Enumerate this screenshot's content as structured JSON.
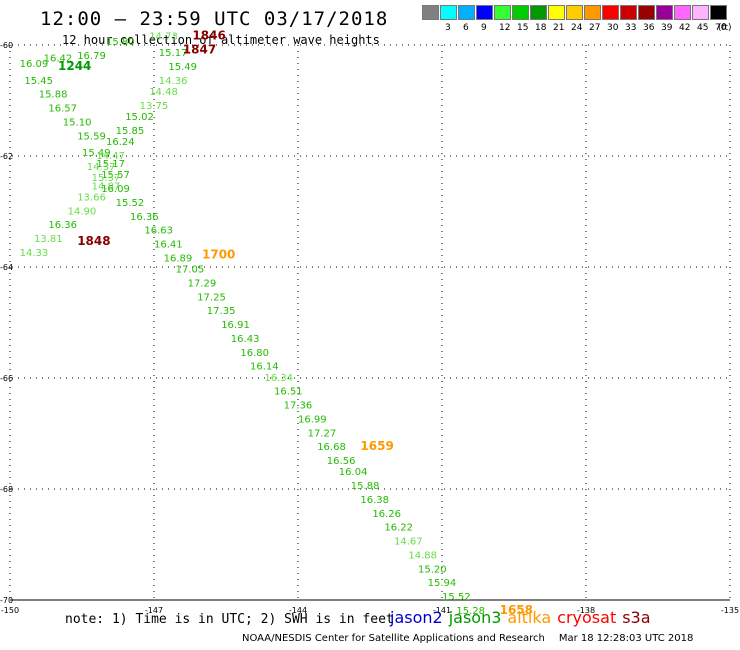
{
  "title": "12:00 – 23:59 UTC 03/17/2018",
  "subtitle": "12 hour collection of altimeter wave heights",
  "scale": {
    "unit": "(ft)",
    "colors": [
      "#808080",
      "#00ffff",
      "#00b0ff",
      "#0000ff",
      "#33ff33",
      "#00cc00",
      "#009900",
      "#ffff00",
      "#ffcc00",
      "#ff9900",
      "#ff0000",
      "#cc0000",
      "#990000",
      "#990099",
      "#ff66ff",
      "#ffb3ff",
      "#000000"
    ],
    "labels": [
      "3",
      "6",
      "9",
      "12",
      "15",
      "18",
      "21",
      "24",
      "27",
      "30",
      "33",
      "36",
      "39",
      "42",
      "45",
      "70"
    ]
  },
  "map": {
    "lon_range": [
      -150,
      -135
    ],
    "lat_range": [
      -70,
      -60
    ],
    "lat_ticks": [
      "-60",
      "-62",
      "-64",
      "-66",
      "-68",
      "-70"
    ],
    "lon_ticks": [
      "-150",
      "-147",
      "-144",
      "-141",
      "-138",
      "-135"
    ],
    "grid": "dotted"
  },
  "colors": {
    "light": "#66dd44",
    "mid": "#22bb00",
    "dark": "#009900",
    "orange": "#ff9900",
    "darkred": "#880000"
  },
  "points": [
    {
      "lon": -149.8,
      "lat": -60.4,
      "v": "16.09",
      "c": "mid"
    },
    {
      "lon": -149.3,
      "lat": -60.3,
      "v": "16.42",
      "c": "mid"
    },
    {
      "lon": -148.6,
      "lat": -60.25,
      "v": "16.79",
      "c": "mid"
    },
    {
      "lon": -148.0,
      "lat": -60.0,
      "v": "15.80",
      "c": "mid"
    },
    {
      "lon": -149.7,
      "lat": -60.7,
      "v": "15.45",
      "c": "mid"
    },
    {
      "lon": -149.4,
      "lat": -60.95,
      "v": "15.88",
      "c": "mid"
    },
    {
      "lon": -149.2,
      "lat": -61.2,
      "v": "16.57",
      "c": "mid"
    },
    {
      "lon": -148.9,
      "lat": -61.45,
      "v": "15.10",
      "c": "mid"
    },
    {
      "lon": -148.6,
      "lat": -61.7,
      "v": "15.59",
      "c": "mid"
    },
    {
      "lon": -148.5,
      "lat": -62.0,
      "v": "15.49",
      "c": "mid"
    },
    {
      "lon": -148.2,
      "lat": -62.2,
      "v": "15.17",
      "c": "mid"
    },
    {
      "lon": -148.1,
      "lat": -62.4,
      "v": "15.57",
      "c": "mid"
    },
    {
      "lon": -148.3,
      "lat": -62.6,
      "v": "14.87",
      "c": "light"
    },
    {
      "lon": -148.6,
      "lat": -62.8,
      "v": "13.66",
      "c": "light"
    },
    {
      "lon": -148.8,
      "lat": -63.05,
      "v": "14.90",
      "c": "light"
    },
    {
      "lon": -149.2,
      "lat": -63.3,
      "v": "16.36",
      "c": "mid"
    },
    {
      "lon": -149.5,
      "lat": -63.55,
      "v": "13.81",
      "c": "light"
    },
    {
      "lon": -149.8,
      "lat": -63.8,
      "v": "14.33",
      "c": "light"
    },
    {
      "lon": -147.1,
      "lat": -59.9,
      "v": "14.73",
      "c": "light"
    },
    {
      "lon": -146.9,
      "lat": -60.2,
      "v": "15.17",
      "c": "mid"
    },
    {
      "lon": -146.7,
      "lat": -60.45,
      "v": "15.49",
      "c": "mid"
    },
    {
      "lon": -146.9,
      "lat": -60.7,
      "v": "14.36",
      "c": "light"
    },
    {
      "lon": -147.1,
      "lat": -60.9,
      "v": "14.48",
      "c": "light"
    },
    {
      "lon": -147.3,
      "lat": -61.15,
      "v": "13.75",
      "c": "light"
    },
    {
      "lon": -147.6,
      "lat": -61.35,
      "v": "15.02",
      "c": "mid"
    },
    {
      "lon": -147.8,
      "lat": -61.6,
      "v": "15.85",
      "c": "mid"
    },
    {
      "lon": -148.0,
      "lat": -61.8,
      "v": "16.24",
      "c": "mid"
    },
    {
      "lon": -148.2,
      "lat": -62.05,
      "v": "14.47",
      "c": "light"
    },
    {
      "lon": -148.4,
      "lat": -62.25,
      "v": "14.37",
      "c": "light"
    },
    {
      "lon": -148.3,
      "lat": -62.45,
      "v": "15.37",
      "c": "light"
    },
    {
      "lon": -148.1,
      "lat": -62.65,
      "v": "16.09",
      "c": "mid"
    },
    {
      "lon": -147.8,
      "lat": -62.9,
      "v": "15.52",
      "c": "mid"
    },
    {
      "lon": -147.5,
      "lat": -63.15,
      "v": "16.36",
      "c": "mid"
    },
    {
      "lon": -147.2,
      "lat": -63.4,
      "v": "16.63",
      "c": "mid"
    },
    {
      "lon": -147.0,
      "lat": -63.65,
      "v": "16.41",
      "c": "mid"
    },
    {
      "lon": -146.8,
      "lat": -63.9,
      "v": "16.89",
      "c": "mid"
    },
    {
      "lon": -146.55,
      "lat": -64.1,
      "v": "17.05",
      "c": "mid"
    },
    {
      "lon": -146.3,
      "lat": -64.35,
      "v": "17.29",
      "c": "mid"
    },
    {
      "lon": -146.1,
      "lat": -64.6,
      "v": "17.25",
      "c": "mid"
    },
    {
      "lon": -145.9,
      "lat": -64.85,
      "v": "17.35",
      "c": "mid"
    },
    {
      "lon": -145.6,
      "lat": -65.1,
      "v": "16.91",
      "c": "mid"
    },
    {
      "lon": -145.4,
      "lat": -65.35,
      "v": "16.43",
      "c": "mid"
    },
    {
      "lon": -145.2,
      "lat": -65.6,
      "v": "16.80",
      "c": "mid"
    },
    {
      "lon": -145.0,
      "lat": -65.85,
      "v": "16.14",
      "c": "mid"
    },
    {
      "lon": -144.7,
      "lat": -66.05,
      "v": "16.34",
      "c": "light"
    },
    {
      "lon": -144.5,
      "lat": -66.3,
      "v": "16.51",
      "c": "mid"
    },
    {
      "lon": -144.3,
      "lat": -66.55,
      "v": "17.36",
      "c": "mid"
    },
    {
      "lon": -144.0,
      "lat": -66.8,
      "v": "16.99",
      "c": "mid"
    },
    {
      "lon": -143.8,
      "lat": -67.05,
      "v": "17.27",
      "c": "mid"
    },
    {
      "lon": -143.6,
      "lat": -67.3,
      "v": "16.68",
      "c": "mid"
    },
    {
      "lon": -143.4,
      "lat": -67.55,
      "v": "16.56",
      "c": "mid"
    },
    {
      "lon": -143.15,
      "lat": -67.75,
      "v": "16.04",
      "c": "mid"
    },
    {
      "lon": -142.9,
      "lat": -68.0,
      "v": "15.88",
      "c": "mid"
    },
    {
      "lon": -142.7,
      "lat": -68.25,
      "v": "16.38",
      "c": "mid"
    },
    {
      "lon": -142.45,
      "lat": -68.5,
      "v": "16.26",
      "c": "mid"
    },
    {
      "lon": -142.2,
      "lat": -68.75,
      "v": "16.22",
      "c": "mid"
    },
    {
      "lon": -142.0,
      "lat": -69.0,
      "v": "14.67",
      "c": "light"
    },
    {
      "lon": -141.7,
      "lat": -69.25,
      "v": "14.88",
      "c": "light"
    },
    {
      "lon": -141.5,
      "lat": -69.5,
      "v": "15.20",
      "c": "mid"
    },
    {
      "lon": -141.3,
      "lat": -69.75,
      "v": "15.94",
      "c": "mid"
    },
    {
      "lon": -141.0,
      "lat": -70.0,
      "v": "15.52",
      "c": "mid"
    },
    {
      "lon": -140.7,
      "lat": -70.25,
      "v": "15.28",
      "c": "mid"
    }
  ],
  "time_labels": [
    {
      "lon": -146.2,
      "lat": -59.9,
      "t": "1846",
      "c": "darkred"
    },
    {
      "lon": -146.4,
      "lat": -60.15,
      "t": "1847",
      "c": "darkred"
    },
    {
      "lon": -149.0,
      "lat": -60.45,
      "t": "1244",
      "c": "dark"
    },
    {
      "lon": -148.6,
      "lat": -63.6,
      "t": "1848",
      "c": "darkred"
    },
    {
      "lon": -146.0,
      "lat": -63.85,
      "t": "1700",
      "c": "orange"
    },
    {
      "lon": -142.7,
      "lat": -67.3,
      "t": "1659",
      "c": "orange"
    },
    {
      "lon": -139.8,
      "lat": -70.25,
      "t": "1658",
      "c": "orange"
    }
  ],
  "footnote": "note:  1) Time is in UTC;  2) SWH is in feet",
  "satellites": [
    {
      "name": "jason2",
      "color": "#0000cc"
    },
    {
      "name": "jason3",
      "color": "#009900"
    },
    {
      "name": "altika",
      "color": "#ff9900"
    },
    {
      "name": "cryosat",
      "color": "#ff0000"
    },
    {
      "name": "s3a",
      "color": "#880000"
    }
  ],
  "credit": "NOAA/NESDIS Center for Satellite Applications and Research",
  "timestamp": "Mar 18 12:28:03 UTC 2018"
}
